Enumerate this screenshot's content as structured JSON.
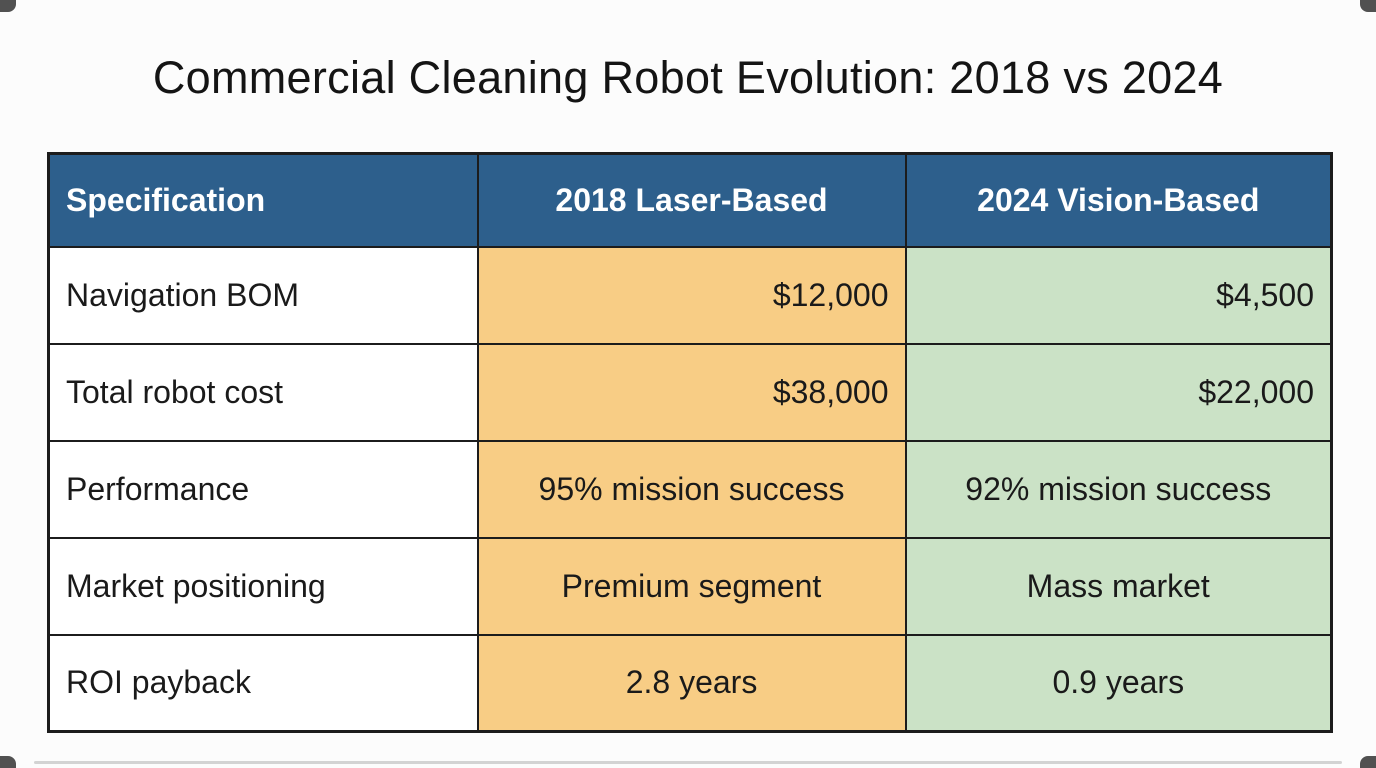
{
  "title": "Commercial Cleaning Robot Evolution: 2018 vs 2024",
  "colors": {
    "title_text": "#141414",
    "header_bg": "#2d5f8c",
    "header_text": "#ffffff",
    "col_2018_bg": "#f8cd85",
    "col_2024_bg": "#cbe2c6",
    "border": "#1c1c1c"
  },
  "table": {
    "columns": [
      "Specification",
      "2018 Laser-Based",
      "2024 Vision-Based"
    ],
    "rows": [
      {
        "spec": "Navigation BOM",
        "y2018": "$12,000",
        "y2024": "$4,500"
      },
      {
        "spec": "Total robot cost",
        "y2018": "$38,000",
        "y2024": "$22,000"
      },
      {
        "spec": "Performance",
        "y2018": "95% mission success",
        "y2024": "92% mission success"
      },
      {
        "spec": "Market positioning",
        "y2018": "Premium segment",
        "y2024": "Mass market"
      },
      {
        "spec": "ROI payback",
        "y2018": "2.8 years",
        "y2024": "0.9 years"
      }
    ]
  },
  "chart_data": {
    "type": "table",
    "title": "Commercial Cleaning Robot Evolution: 2018 vs 2024",
    "columns": [
      "Specification",
      "2018 Laser-Based",
      "2024 Vision-Based"
    ],
    "rows": [
      [
        "Navigation BOM",
        "$12,000",
        "$4,500"
      ],
      [
        "Total robot cost",
        "$38,000",
        "$22,000"
      ],
      [
        "Performance",
        "95% mission success",
        "92% mission success"
      ],
      [
        "Market positioning",
        "Premium segment",
        "Mass market"
      ],
      [
        "ROI payback",
        "2.8 years",
        "0.9 years"
      ]
    ]
  }
}
